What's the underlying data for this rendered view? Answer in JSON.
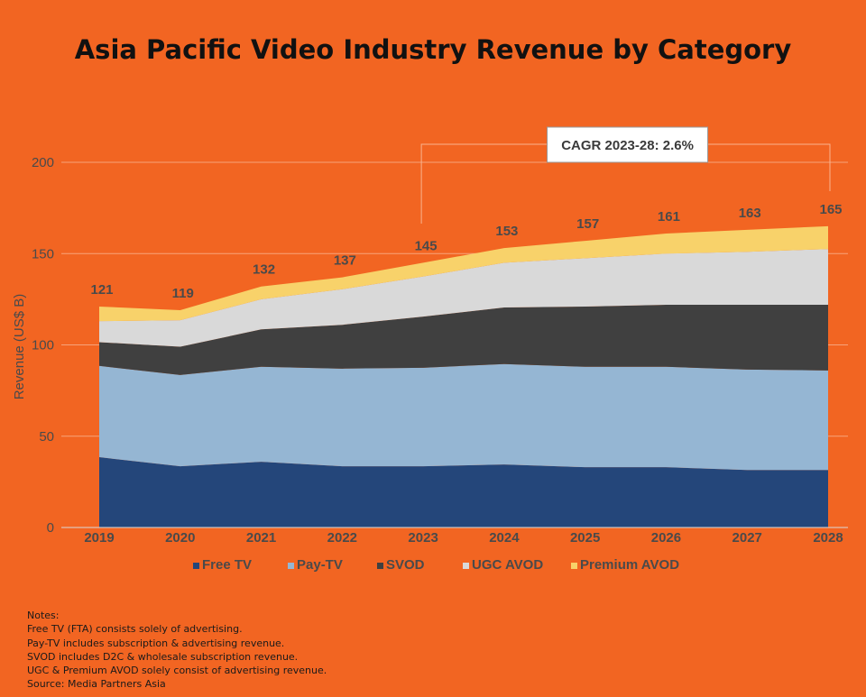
{
  "title": "Asia Pacific Video Industry Revenue by Category",
  "chart_data": {
    "type": "area",
    "stacked": true,
    "title": "Asia Pacific Video Industry Revenue by Category",
    "ylabel": "Revenue (US$ B)",
    "xlabel": "",
    "ylim": [
      0,
      200
    ],
    "yticks": [
      0,
      50,
      100,
      150,
      200
    ],
    "grid": true,
    "legend_position": "bottom",
    "x": [
      "2019",
      "2020",
      "2021",
      "2022",
      "2023",
      "2024",
      "2025",
      "2026",
      "2027",
      "2028"
    ],
    "series": [
      {
        "name": "Free TV",
        "color": "#24467A",
        "values": [
          38.5,
          33.5,
          36,
          33.5,
          33.5,
          34.5,
          33,
          33,
          31.5,
          31.5
        ]
      },
      {
        "name": "Pay-TV",
        "color": "#95B6D3",
        "values": [
          50,
          50,
          52,
          53.5,
          54,
          55,
          55,
          55,
          55,
          54.5
        ]
      },
      {
        "name": "SVOD",
        "color": "#404040",
        "values": [
          13,
          15.5,
          20.5,
          24,
          28,
          31,
          33,
          34,
          35.5,
          36
        ]
      },
      {
        "name": "UGC AVOD",
        "color": "#D9D9D9",
        "values": [
          11.5,
          14.5,
          16.5,
          19.5,
          22,
          24.5,
          26.5,
          28,
          29,
          30.5
        ]
      },
      {
        "name": "Premium AVOD",
        "color": "#F8D26A",
        "values": [
          8,
          5.5,
          7,
          6.5,
          7.5,
          8,
          9.5,
          11,
          12,
          12.5
        ]
      }
    ],
    "totals": [
      "121",
      "119",
      "132",
      "137",
      "145",
      "153",
      "157",
      "161",
      "163",
      "165"
    ],
    "annotation": {
      "text": "CAGR 2023-28: 2.6%",
      "from": "2023",
      "to": "2028"
    }
  },
  "notes": [
    "Notes:",
    "Free TV (FTA) consists solely of advertising.",
    "Pay-TV includes subscription & advertising revenue.",
    "SVOD includes D2C & wholesale subscription revenue.",
    "UGC & Premium AVOD solely consist of advertising revenue.",
    "Source: Media Partners Asia"
  ]
}
